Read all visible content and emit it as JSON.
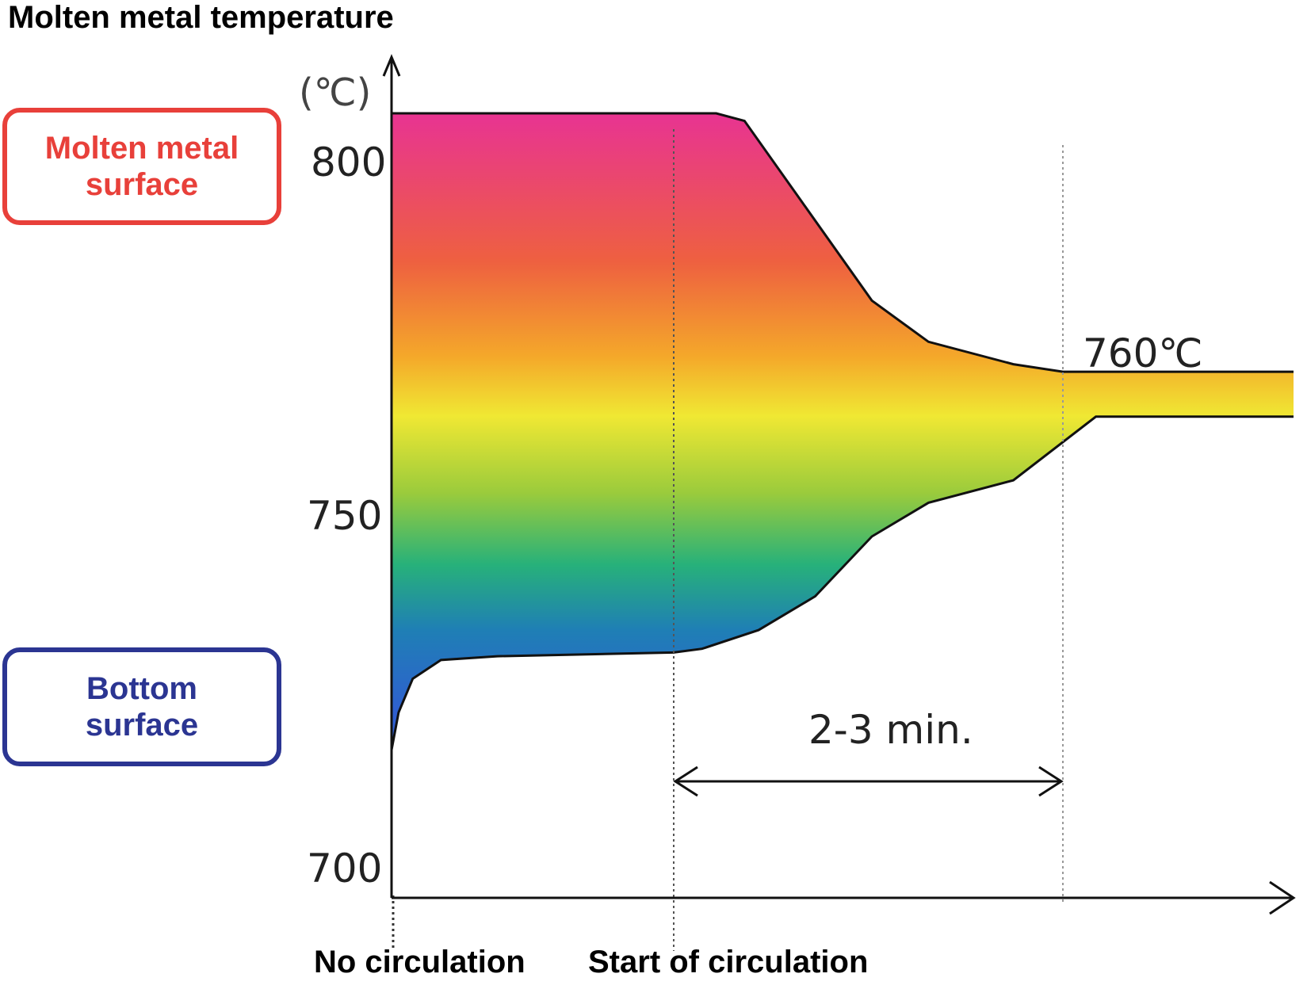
{
  "title": "Molten metal temperature",
  "unit": "(℃)",
  "legend": {
    "surface": {
      "line1": "Molten metal",
      "line2": "surface",
      "color": "#e8403a"
    },
    "bottom": {
      "line1": "Bottom",
      "line2": "surface",
      "color": "#2b3592"
    }
  },
  "x_categories": {
    "no_circulation": "No circulation",
    "start_circulation": "Start of circulation"
  },
  "annotations": {
    "final_temp": "760℃",
    "duration": "2-3 min."
  },
  "colors": {
    "gradient": [
      "#e8358f",
      "#ee5f45",
      "#f4a82a",
      "#f0e833",
      "#9acb3c",
      "#27b17a",
      "#1f7fb5",
      "#2f5fd0"
    ],
    "axis": "#111111",
    "guide": "#888888"
  },
  "chart_data": {
    "type": "area",
    "title": "Molten metal temperature",
    "ylabel": "(℃)",
    "yticks": [
      "800",
      "750",
      "700"
    ],
    "ylim": [
      700,
      810
    ],
    "grid": false,
    "xlim": [
      0,
      10
    ],
    "series": [
      {
        "name": "Molten metal surface",
        "points": [
          [
            0,
            805.5
          ],
          [
            4,
            805.5
          ],
          [
            4.6,
            805.5
          ],
          [
            5.0,
            804.5
          ],
          [
            6.8,
            780.5
          ],
          [
            7.6,
            775.0
          ],
          [
            8.8,
            772.0
          ],
          [
            9.5,
            771.0
          ],
          [
            13.0,
            771.0
          ]
        ]
      },
      {
        "name": "Bottom surface",
        "points": [
          [
            0.0,
            720.5
          ],
          [
            0.1,
            725.5
          ],
          [
            0.3,
            730.0
          ],
          [
            0.7,
            732.5
          ],
          [
            1.5,
            733.0
          ],
          [
            4.0,
            733.5
          ],
          [
            4.4,
            734.0
          ],
          [
            5.2,
            736.5
          ],
          [
            6.0,
            741.0
          ],
          [
            6.8,
            749.0
          ],
          [
            7.6,
            753.5
          ],
          [
            8.8,
            756.5
          ],
          [
            10.0,
            765.0
          ],
          [
            13.0,
            765.0
          ]
        ]
      }
    ],
    "vlines": [
      {
        "x": 4.0,
        "label": "Start of circulation"
      },
      {
        "x": 9.5,
        "label": ""
      }
    ],
    "annotations": [
      {
        "text": "760℃",
        "x": 9.8,
        "y": 777
      },
      {
        "text": "2-3 min.",
        "x_from": 4.0,
        "x_to": 9.5,
        "y": 716
      }
    ]
  }
}
